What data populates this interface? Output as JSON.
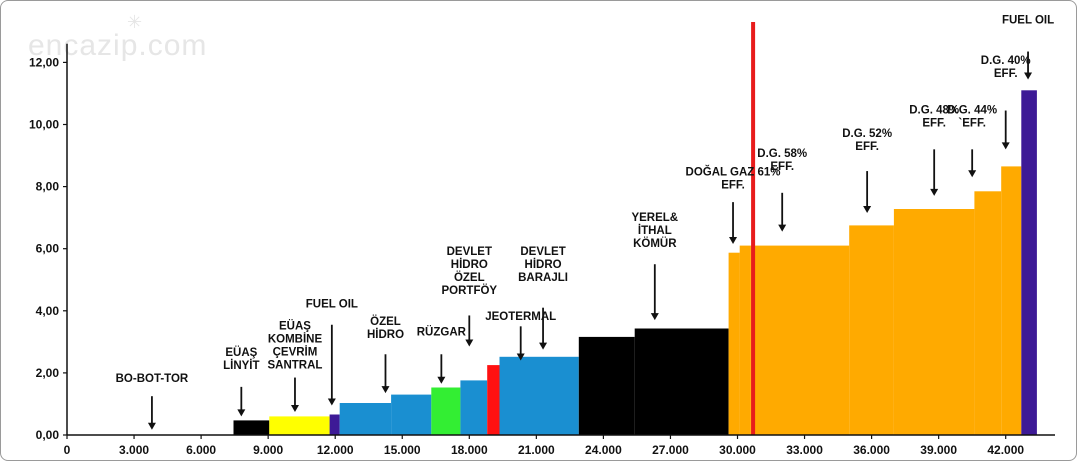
{
  "watermark": "encazip.com",
  "chart_data": {
    "type": "bar",
    "subtype": "merit-order-step",
    "title": "",
    "xlabel": "",
    "ylabel": "",
    "xlim": [
      0,
      43500
    ],
    "ylim": [
      0,
      12.6
    ],
    "grid": false,
    "x_ticks": [
      0,
      3000,
      6000,
      9000,
      12000,
      15000,
      18000,
      21000,
      24000,
      27000,
      30000,
      33000,
      36000,
      39000,
      42000
    ],
    "x_tick_labels": [
      "0",
      "3.000",
      "6.000",
      "9.000",
      "12.000",
      "15.000",
      "18.000",
      "21.000",
      "24.000",
      "27.000",
      "30.000",
      "33.000",
      "36.000",
      "39.000",
      "42.000"
    ],
    "y_ticks": [
      0,
      2,
      4,
      6,
      8,
      10,
      12
    ],
    "y_tick_labels": [
      "0,00",
      "2,00",
      "4,00",
      "6,00",
      "8,00",
      "10,00",
      "12,00"
    ],
    "blocks": [
      {
        "name": "BO-BOT-TOR",
        "x0": 0,
        "x1": 7450,
        "y": 0,
        "color": "#000000"
      },
      {
        "name": "EÜAŞ LİNYİT",
        "x0": 7450,
        "x1": 9050,
        "y": 0.47,
        "color": "#000000"
      },
      {
        "name": "EÜAŞ KOMBİNE ÇEVRİM SANTRAL",
        "x0": 9050,
        "x1": 11750,
        "y": 0.6,
        "color": "#ffff00"
      },
      {
        "name": "FUEL OIL",
        "x0": 11750,
        "x1": 12200,
        "y": 0.66,
        "color": "#3d1a96"
      },
      {
        "name": "ÖZEL HİDRO",
        "x0": 12200,
        "x1": 14500,
        "y": 1.03,
        "color": "#1a8fd1"
      },
      {
        "name": "ÖZEL HİDRO",
        "x0": 14500,
        "x1": 16300,
        "y": 1.3,
        "color": "#1a8fd1"
      },
      {
        "name": "RÜZGAR",
        "x0": 16300,
        "x1": 17600,
        "y": 1.53,
        "color": "#33ee33"
      },
      {
        "name": "DEVLET HİDRO ÖZEL PORTFÖY",
        "x0": 17600,
        "x1": 18800,
        "y": 1.76,
        "color": "#1a8fd1"
      },
      {
        "name": "JEOTERMAL",
        "x0": 18800,
        "x1": 19350,
        "y": 2.25,
        "color": "#ff1111"
      },
      {
        "name": "DEVLET HİDRO BARAJLI",
        "x0": 19350,
        "x1": 22900,
        "y": 2.52,
        "color": "#1a8fd1"
      },
      {
        "name": "YEREL& İTHAL KÖMÜR",
        "x0": 22900,
        "x1": 25400,
        "y": 3.16,
        "color": "#000000"
      },
      {
        "name": "YEREL& İTHAL KÖMÜR",
        "x0": 25400,
        "x1": 29600,
        "y": 3.43,
        "color": "#000000"
      },
      {
        "name": "DOĞAL GAZ 61% EFF.",
        "x0": 29600,
        "x1": 30100,
        "y": 5.87,
        "color": "#ffaa00"
      },
      {
        "name": "DOĞAL GAZ 61% EFF.",
        "x0": 30100,
        "x1": 30600,
        "y": 6.1,
        "color": "#ffaa00"
      },
      {
        "name": "D.G. 58% EFF.",
        "x0": 30600,
        "x1": 35000,
        "y": 6.1,
        "color": "#ffaa00"
      },
      {
        "name": "D.G. 52% EFF.",
        "x0": 35000,
        "x1": 37000,
        "y": 6.75,
        "color": "#ffaa00"
      },
      {
        "name": "D.G. 48% EFF.",
        "x0": 37000,
        "x1": 40600,
        "y": 7.28,
        "color": "#ffaa00"
      },
      {
        "name": "D.G. 44% `EFF.",
        "x0": 40600,
        "x1": 41800,
        "y": 7.85,
        "color": "#ffaa00"
      },
      {
        "name": "D.G. 40% EFF.",
        "x0": 41800,
        "x1": 42700,
        "y": 8.65,
        "color": "#ffaa00"
      },
      {
        "name": "FUEL OIL",
        "x0": 42700,
        "x1": 43400,
        "y": 11.1,
        "color": "#3d1a96"
      }
    ],
    "demand_line": {
      "x": 30700,
      "y_top": 13.3,
      "color": "#e81c1c"
    },
    "annotations": [
      {
        "lines": [
          "BO-BOT-TOR"
        ],
        "x": 3800,
        "text_y": 1.7,
        "arrow_from": 1.25,
        "arrow_to": 0.17
      },
      {
        "lines": [
          "EÜAŞ",
          "LİNYİT"
        ],
        "x": 7800,
        "text_y": 2.55,
        "arrow_from": 1.55,
        "arrow_to": 0.6
      },
      {
        "lines": [
          "EÜAŞ",
          "KOMBİNE",
          "ÇEVRİM",
          "SANTRAL"
        ],
        "x": 10200,
        "text_y": 3.4,
        "arrow_from": 1.85,
        "arrow_to": 0.74
      },
      {
        "lines": [
          "FUEL OIL"
        ],
        "x": 11850,
        "text_y": 4.1,
        "arrow_from": 3.55,
        "arrow_to": 0.95
      },
      {
        "lines": [
          "ÖZEL",
          "HİDRO"
        ],
        "x": 14250,
        "text_y": 3.55,
        "arrow_from": 2.6,
        "arrow_to": 1.35
      },
      {
        "lines": [
          "RÜZGAR"
        ],
        "x": 16750,
        "text_y": 3.2,
        "arrow_from": 2.6,
        "arrow_to": 1.65
      },
      {
        "lines": [
          "DEVLET",
          "HİDRO",
          "ÖZEL",
          "PORTFÖY"
        ],
        "x": 18000,
        "text_y": 5.8,
        "arrow_from": 3.85,
        "arrow_to": 2.85
      },
      {
        "lines": [
          "JEOTERMAL"
        ],
        "x": 20300,
        "text_y": 3.7,
        "arrow_from": 3.5,
        "arrow_to": 2.4
      },
      {
        "lines": [
          "DEVLET",
          "HİDRO",
          "BARAJLI"
        ],
        "x": 21300,
        "text_y": 5.8,
        "arrow_from": 4.1,
        "arrow_to": 2.75
      },
      {
        "lines": [
          "YEREL&",
          "İTHAL",
          "KÖMÜR"
        ],
        "x": 26300,
        "text_y": 6.9,
        "arrow_from": 5.5,
        "arrow_to": 3.7
      },
      {
        "lines": [
          "DOĞAL GAZ 61%",
          "EFF."
        ],
        "x": 29800,
        "text_y": 8.35,
        "arrow_from": 7.5,
        "arrow_to": 6.15
      },
      {
        "lines": [
          "D.G. 58%",
          "EFF."
        ],
        "x": 32000,
        "text_y": 8.95,
        "arrow_from": 7.8,
        "arrow_to": 6.55
      },
      {
        "lines": [
          "D.G. 52%",
          "EFF."
        ],
        "x": 35800,
        "text_y": 9.6,
        "arrow_from": 8.5,
        "arrow_to": 7.15
      },
      {
        "lines": [
          "D.G. 48%",
          "EFF."
        ],
        "x": 38800,
        "text_y": 10.35,
        "arrow_from": 9.2,
        "arrow_to": 7.7
      },
      {
        "lines": [
          "D.G. 44%",
          "`EFF."
        ],
        "x": 40500,
        "text_y": 10.35,
        "arrow_from": 9.2,
        "arrow_to": 8.3
      },
      {
        "lines": [
          "D.G. 40%",
          "EFF."
        ],
        "x": 42000,
        "text_y": 11.95,
        "arrow_from": 10.45,
        "arrow_to": 9.2
      },
      {
        "lines": [
          "FUEL OIL"
        ],
        "x": 43000,
        "text_y": 13.25,
        "arrow_from": 12.35,
        "arrow_to": 11.45
      }
    ]
  }
}
